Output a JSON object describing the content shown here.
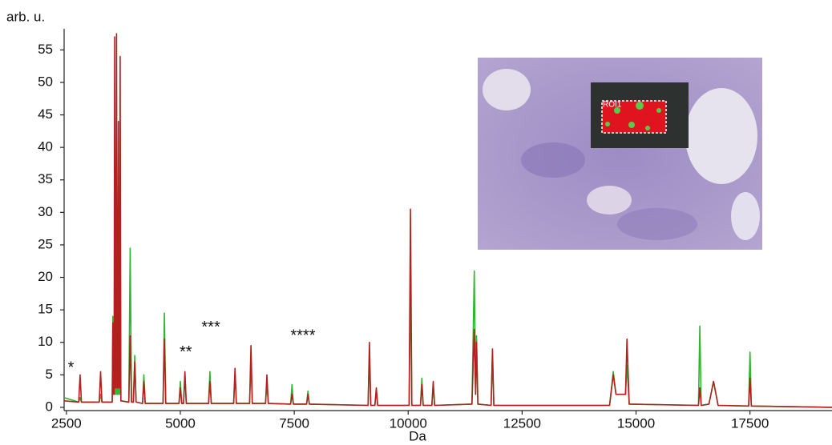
{
  "chart_data": {
    "type": "line",
    "ylabel": "arb. u.",
    "xlabel": "Da",
    "xlim": [
      2450,
      19300
    ],
    "ylim": [
      -0.5,
      58
    ],
    "xticks": [
      2500,
      5000,
      7500,
      10000,
      12500,
      15000,
      17500
    ],
    "yticks": [
      0,
      5,
      10,
      15,
      20,
      25,
      30,
      35,
      40,
      45,
      50,
      55
    ],
    "inset_label": "ROI1",
    "annotations": [
      {
        "text": "*",
        "x": 2600,
        "y": 6
      },
      {
        "text": "**",
        "x": 5120,
        "y": 8.4
      },
      {
        "text": "***",
        "x": 5670,
        "y": 12.2
      },
      {
        "text": "****",
        "x": 7690,
        "y": 10.9
      }
    ],
    "x": [
      2450,
      2770,
      2800,
      2830,
      3220,
      3250,
      3280,
      3505,
      3520,
      3535,
      3545,
      3560,
      3575,
      3585,
      3600,
      3615,
      3625,
      3640,
      3655,
      3665,
      3680,
      3695,
      3870,
      3900,
      3930,
      3970,
      4000,
      4030,
      4170,
      4200,
      4230,
      4620,
      4650,
      4680,
      4970,
      5000,
      5030,
      5070,
      5100,
      5130,
      5620,
      5650,
      5680,
      6170,
      6200,
      6230,
      6520,
      6550,
      6580,
      6870,
      6900,
      6930,
      7420,
      7450,
      7480,
      7770,
      7800,
      7830,
      9120,
      9150,
      9180,
      9270,
      9300,
      9330,
      10020,
      10050,
      10080,
      10270,
      10300,
      10330,
      10520,
      10550,
      10580,
      11400,
      11450,
      11480,
      11500,
      11530,
      11820,
      11850,
      11880,
      14420,
      14500,
      14560,
      14770,
      14800,
      14850,
      16370,
      16400,
      16430,
      16600,
      16700,
      16800,
      17470,
      17500,
      17530,
      19300
    ],
    "series": [
      {
        "color": "#2fb52f",
        "values": [
          1.5,
          0.8,
          1.5,
          0.8,
          0.8,
          2,
          0.8,
          0.8,
          14,
          2,
          2,
          17,
          2,
          2,
          15,
          2,
          2,
          17,
          2,
          2,
          32,
          1,
          0.8,
          24.5,
          0.8,
          0.8,
          8,
          0.8,
          0.6,
          5,
          0.6,
          0.6,
          14.5,
          0.6,
          0.6,
          4,
          0.6,
          0.6,
          5,
          0.6,
          0.6,
          5.5,
          0.6,
          0.6,
          5,
          0.6,
          0.6,
          7,
          0.6,
          0.6,
          4,
          0.6,
          0.5,
          3.5,
          0.5,
          0.5,
          2.5,
          0.5,
          0.3,
          8,
          0.3,
          0.3,
          2.5,
          0.3,
          0.3,
          20,
          0.3,
          0.3,
          4.5,
          0.3,
          0.3,
          3.5,
          0.3,
          0.5,
          21,
          2,
          11,
          0.5,
          0.3,
          8,
          0.3,
          0.3,
          5.5,
          2,
          2,
          6.5,
          0.5,
          0.3,
          12.5,
          0.3,
          0.5,
          4,
          0.3,
          0.2,
          8.5,
          0.2,
          0
        ]
      },
      {
        "color": "#b3201e",
        "values": [
          1,
          0.8,
          5,
          0.8,
          0.8,
          5.5,
          0.8,
          0.8,
          13,
          2,
          2,
          57,
          3,
          3,
          57.5,
          3,
          3,
          44,
          3,
          3,
          54,
          1,
          0.8,
          11,
          0.8,
          0.8,
          7,
          0.8,
          0.6,
          4,
          0.6,
          0.6,
          10.5,
          0.6,
          0.6,
          3,
          0.6,
          0.6,
          5.5,
          0.6,
          0.6,
          4,
          0.6,
          0.6,
          6,
          0.6,
          0.6,
          9.5,
          0.6,
          0.6,
          5,
          0.6,
          0.5,
          2,
          0.5,
          0.5,
          2,
          0.5,
          0.3,
          10,
          0.3,
          0.3,
          3,
          0.3,
          0.3,
          30.5,
          0.3,
          0.3,
          3.5,
          0.3,
          0.3,
          4,
          0.3,
          0.5,
          12,
          2,
          10,
          0.5,
          0.3,
          9,
          0.3,
          0.3,
          5,
          2,
          2,
          10.5,
          0.5,
          0.3,
          3,
          0.3,
          0.5,
          4,
          0.3,
          0.2,
          4.5,
          0.2,
          0
        ]
      }
    ]
  }
}
